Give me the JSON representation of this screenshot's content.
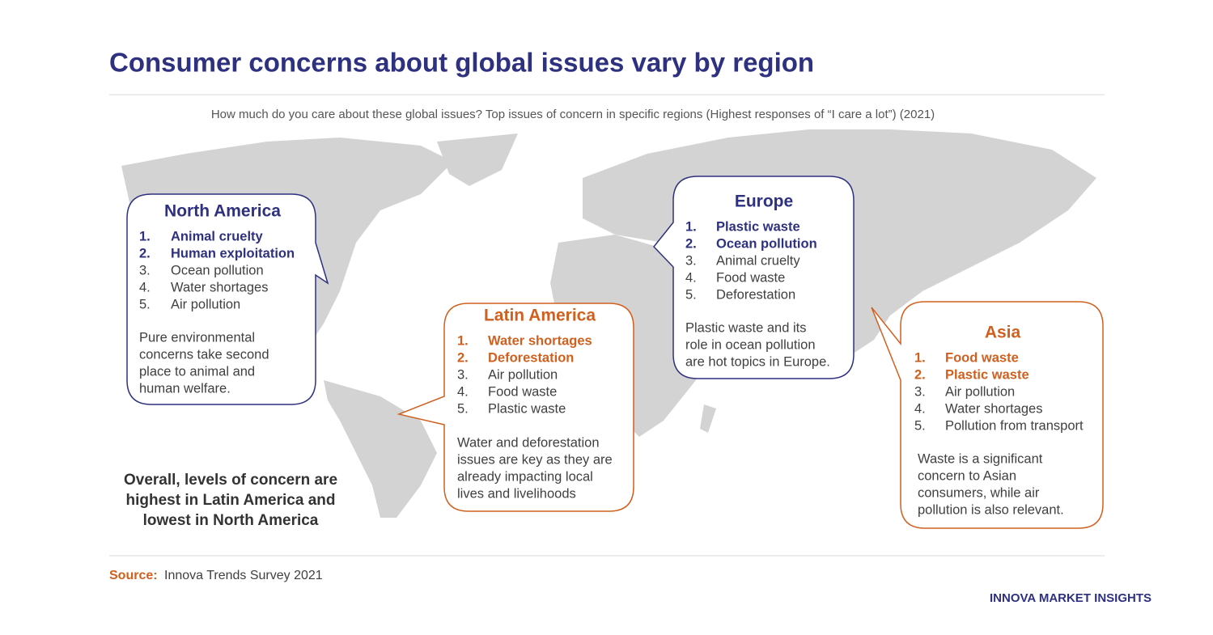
{
  "header": {
    "title": "Consumer concerns about global issues vary by region",
    "subtitle": "How much do you care about these global issues? Top issues of concern in specific regions (Highest responses of “I care a lot”) (2021)"
  },
  "regions": [
    {
      "name": "North America",
      "color": "#2e3080",
      "items": [
        {
          "rank": "1.",
          "text": "Animal cruelty"
        },
        {
          "rank": "2.",
          "text": "Human exploitation"
        },
        {
          "rank": "3.",
          "text": "Ocean pollution"
        },
        {
          "rank": "4.",
          "text": "Water shortages"
        },
        {
          "rank": "5.",
          "text": "Air pollution"
        }
      ],
      "note": [
        "Pure environmental",
        "concerns take second",
        "place to animal and",
        "human welfare."
      ]
    },
    {
      "name": "Europe",
      "color": "#2e3080",
      "items": [
        {
          "rank": "1.",
          "text": "Plastic waste"
        },
        {
          "rank": "2.",
          "text": "Ocean pollution"
        },
        {
          "rank": "3.",
          "text": "Animal cruelty"
        },
        {
          "rank": "4.",
          "text": "Food waste"
        },
        {
          "rank": "5.",
          "text": "Deforestation"
        }
      ],
      "note": [
        "Plastic waste and its",
        "role in ocean pollution",
        "are hot topics in Europe."
      ]
    },
    {
      "name": "Latin America",
      "color": "#d0601f",
      "items": [
        {
          "rank": "1.",
          "text": "Water shortages"
        },
        {
          "rank": "2.",
          "text": "Deforestation"
        },
        {
          "rank": "3.",
          "text": "Air pollution"
        },
        {
          "rank": "4.",
          "text": "Food waste"
        },
        {
          "rank": "5.",
          "text": "Plastic waste"
        }
      ],
      "note": [
        "Water and deforestation",
        "issues are key as they are",
        "already impacting local",
        "lives and livelihoods"
      ]
    },
    {
      "name": "Asia",
      "color": "#d0601f",
      "items": [
        {
          "rank": "1.",
          "text": "Food waste"
        },
        {
          "rank": "2.",
          "text": "Plastic waste"
        },
        {
          "rank": "3.",
          "text": "Air pollution"
        },
        {
          "rank": "4.",
          "text": "Water shortages"
        },
        {
          "rank": "5.",
          "text": "Pollution from transport"
        }
      ],
      "note": [
        "Waste is a significant",
        "concern to Asian",
        "consumers, while air",
        "pollution is also relevant."
      ]
    }
  ],
  "summary": [
    "Overall, levels of concern are",
    "highest in Latin America and",
    "lowest in North America"
  ],
  "footer": {
    "source_label": "Source:",
    "source": "Innova Trends Survey 2021",
    "brand": "INNOVA MARKET INSIGHTS"
  }
}
